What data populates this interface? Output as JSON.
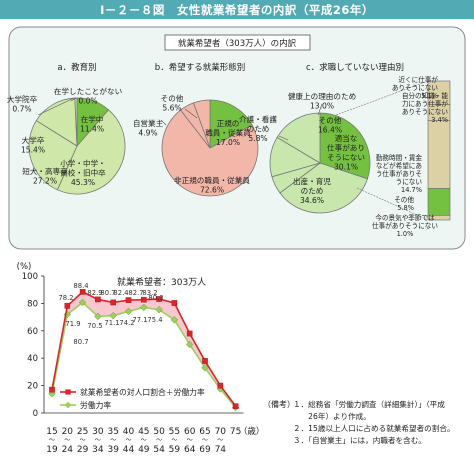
{
  "figure_title": "Ⅰ－２－８図　女性就業希望者の内訳（平成26年）",
  "colors": {
    "title_bar": "#52aab4",
    "box_bg": "#eef6f3",
    "pie_a": "#cfe7a8",
    "pie_b": "#f2b7a8",
    "pie_c": "#c7e7ad",
    "highlight_green": "#74c040",
    "stack_bar": "#dcd0a5",
    "line_red": "#e0232a",
    "line_green": "#9bd05a",
    "fill_pink": "#f7c8d0"
  },
  "chart_data": [
    {
      "type": "pie",
      "box_title": "就業希望者（303万人）の内訳",
      "title": "a．教育別",
      "slices": [
        {
          "label": [
            "在学中",
            "11.4%"
          ],
          "value": 11.4,
          "highlight": true
        },
        {
          "label": [
            "小学・中学・",
            "高校・旧中卒",
            "45.3%"
          ],
          "value": 45.3,
          "highlight": false
        },
        {
          "label": [
            "短大・高専卒",
            "27.2%"
          ],
          "value": 27.2,
          "highlight": false
        },
        {
          "label": [
            "大学卒",
            "15.4%"
          ],
          "value": 15.4,
          "highlight": false
        },
        {
          "label": [
            "大学院卒",
            "0.7%"
          ],
          "value": 0.7,
          "highlight": false
        },
        {
          "label": [
            "在学したことがない",
            "0.0%"
          ],
          "value": 0.0,
          "highlight": false
        }
      ]
    },
    {
      "type": "pie",
      "title": "b．希望する就業形態別",
      "slices": [
        {
          "label": [
            "正規の",
            "職員・従業員",
            "17.0%"
          ],
          "value": 17.0,
          "highlight": true
        },
        {
          "label": [
            "非正規の職員・従業員",
            "72.6%"
          ],
          "value": 72.6,
          "highlight": false
        },
        {
          "label": [
            "自営業主",
            "4.9%"
          ],
          "value": 4.9,
          "highlight": false
        },
        {
          "label": [
            "その他",
            "5.6%"
          ],
          "value": 5.6,
          "highlight": false
        }
      ]
    },
    {
      "type": "pie",
      "title": "c．求職していない理由別",
      "slices": [
        {
          "label": [
            "適当な",
            "仕事があり",
            "そうにない",
            "30.1%"
          ],
          "value": 30.1,
          "highlight": true
        },
        {
          "label": [
            "出産・育児",
            "のため",
            "34.6%"
          ],
          "value": 34.6,
          "highlight": false
        },
        {
          "label": [
            "介護・看護",
            "のため",
            "5.8%"
          ],
          "value": 5.8,
          "highlight": false
        },
        {
          "label": [
            "健康上の理由のため",
            "13.0%"
          ],
          "value": 13.0,
          "highlight": false
        },
        {
          "label": [
            "その他",
            "16.4%"
          ],
          "value": 16.4,
          "highlight": false
        }
      ],
      "breakdown": [
        {
          "label": [
            "近くに仕事が",
            "ありそうにない",
            "5.1%"
          ],
          "value": 5.1,
          "highlight": false
        },
        {
          "label": [
            "自分の知識・能",
            "力にあう仕事が",
            "ありそうにない",
            "3.4%"
          ],
          "value": 3.4,
          "highlight": false
        },
        {
          "label": [
            "勤務時間・賃金",
            "などが希望にあ",
            "う仕事がありそ",
            "うにない",
            "14.7%"
          ],
          "value": 14.7,
          "highlight": false
        },
        {
          "label": [
            "その他",
            "5.8%"
          ],
          "value": 5.8,
          "highlight": true
        },
        {
          "label": [
            "今の景気や季節では",
            "仕事がありそうにない",
            "1.0%"
          ],
          "value": 1.0,
          "highlight": false
        }
      ]
    },
    {
      "type": "line",
      "ylabel": "(%)",
      "xlabel": "（歳）",
      "ylim": [
        0,
        100
      ],
      "yticks": [
        0,
        20,
        40,
        60,
        80,
        100
      ],
      "categories": [
        [
          "15",
          "～",
          "19"
        ],
        [
          "20",
          "～",
          "24"
        ],
        [
          "25",
          "～",
          "29"
        ],
        [
          "30",
          "～",
          "34"
        ],
        [
          "35",
          "～",
          "39"
        ],
        [
          "40",
          "～",
          "44"
        ],
        [
          "45",
          "～",
          "49"
        ],
        [
          "50",
          "～",
          "54"
        ],
        [
          "55",
          "～",
          "59"
        ],
        [
          "60",
          "～",
          "64"
        ],
        [
          "65",
          "～",
          "69"
        ],
        [
          "70",
          "～",
          "74"
        ],
        [
          "75",
          ""
        ]
      ],
      "annotation": "就業希望者：303万人",
      "series": [
        {
          "name": "就業希望者の対人口割合＋労働力率",
          "marker": "square",
          "values": [
            17.0,
            78.2,
            88.4,
            82.9,
            80.7,
            82.4,
            82.7,
            83.2,
            80.3,
            58.0,
            38.0,
            20.0,
            5.0
          ]
        },
        {
          "name": "労働力率",
          "marker": "diamond",
          "values": [
            14.0,
            71.9,
            80.7,
            70.5,
            71.1,
            74.2,
            77.1,
            75.4,
            68.0,
            50.0,
            33.0,
            17.5,
            4.0
          ]
        }
      ],
      "value_labels": [
        "78.2",
        "88.4",
        "71.9",
        "80.7",
        "82.9",
        "70.5",
        "80.7",
        "71.1",
        "82.4",
        "74.2",
        "82.7",
        "77.1",
        "83.2",
        "75.4",
        "80.3"
      ]
    }
  ],
  "notes": {
    "head": "（備考）",
    "lines": [
      "１．総務省「労働力調査（詳細集計）」（平成",
      "　　26年）より作成。",
      "２．15歳以上人口に占める就業希望者の割合。",
      "３．「自営業主」には，内職者を含む。"
    ]
  }
}
